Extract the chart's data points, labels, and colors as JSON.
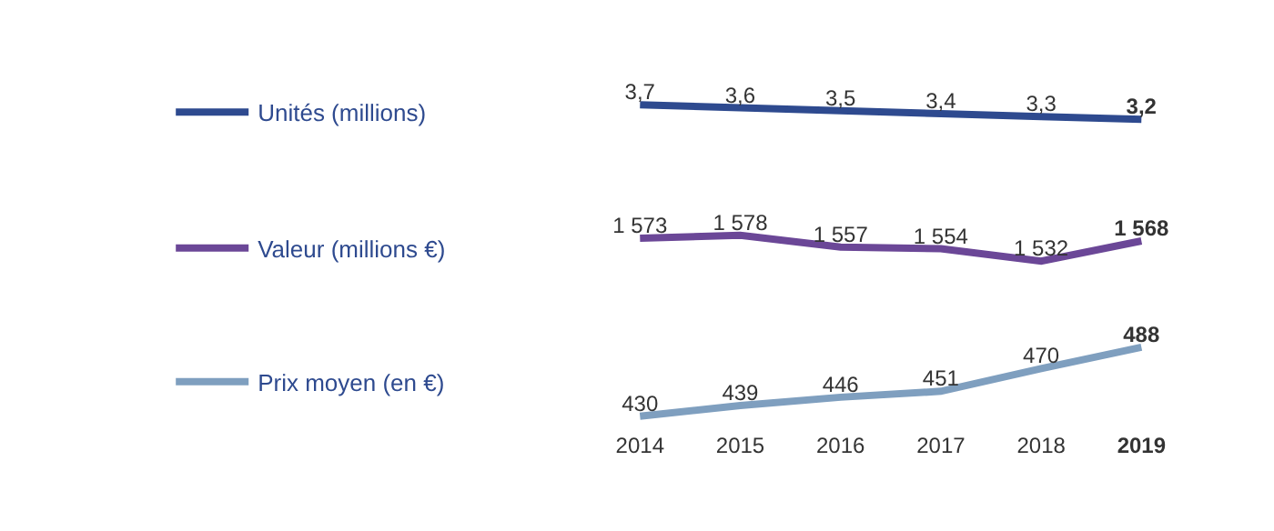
{
  "chart_data": [
    {
      "type": "line",
      "categories": [
        "2014",
        "2015",
        "2016",
        "2017",
        "2018",
        "2019"
      ],
      "tick_labels": false,
      "legend": "left",
      "data_labels": true,
      "series": [
        {
          "name": "Unités (millions)",
          "color": "#2e4a8f",
          "values": [
            3.7,
            3.6,
            3.5,
            3.4,
            3.3,
            3.2
          ],
          "value_labels": [
            "3,7",
            "3,6",
            "3,5",
            "3,4",
            "3,3",
            "3,2"
          ]
        }
      ]
    },
    {
      "type": "line",
      "categories": [
        "2014",
        "2015",
        "2016",
        "2017",
        "2018",
        "2019"
      ],
      "tick_labels": false,
      "legend": "left",
      "data_labels": true,
      "series": [
        {
          "name": "Valeur (millions €)",
          "color": "#6b4797",
          "values": [
            1573,
            1578,
            1557,
            1554,
            1532,
            1568
          ],
          "value_labels": [
            "1 573",
            "1 578",
            "1 557",
            "1 554",
            "1 532",
            "1 568"
          ]
        }
      ]
    },
    {
      "type": "line",
      "categories": [
        "2014",
        "2015",
        "2016",
        "2017",
        "2018",
        "2019"
      ],
      "tick_labels": "x",
      "legend": "left",
      "data_labels": true,
      "series": [
        {
          "name": "Prix moyen (en €)",
          "color": "#7f9fbf",
          "values": [
            430,
            439,
            446,
            451,
            470,
            488
          ],
          "value_labels": [
            "430",
            "439",
            "446",
            "451",
            "470",
            "488"
          ]
        }
      ]
    }
  ]
}
